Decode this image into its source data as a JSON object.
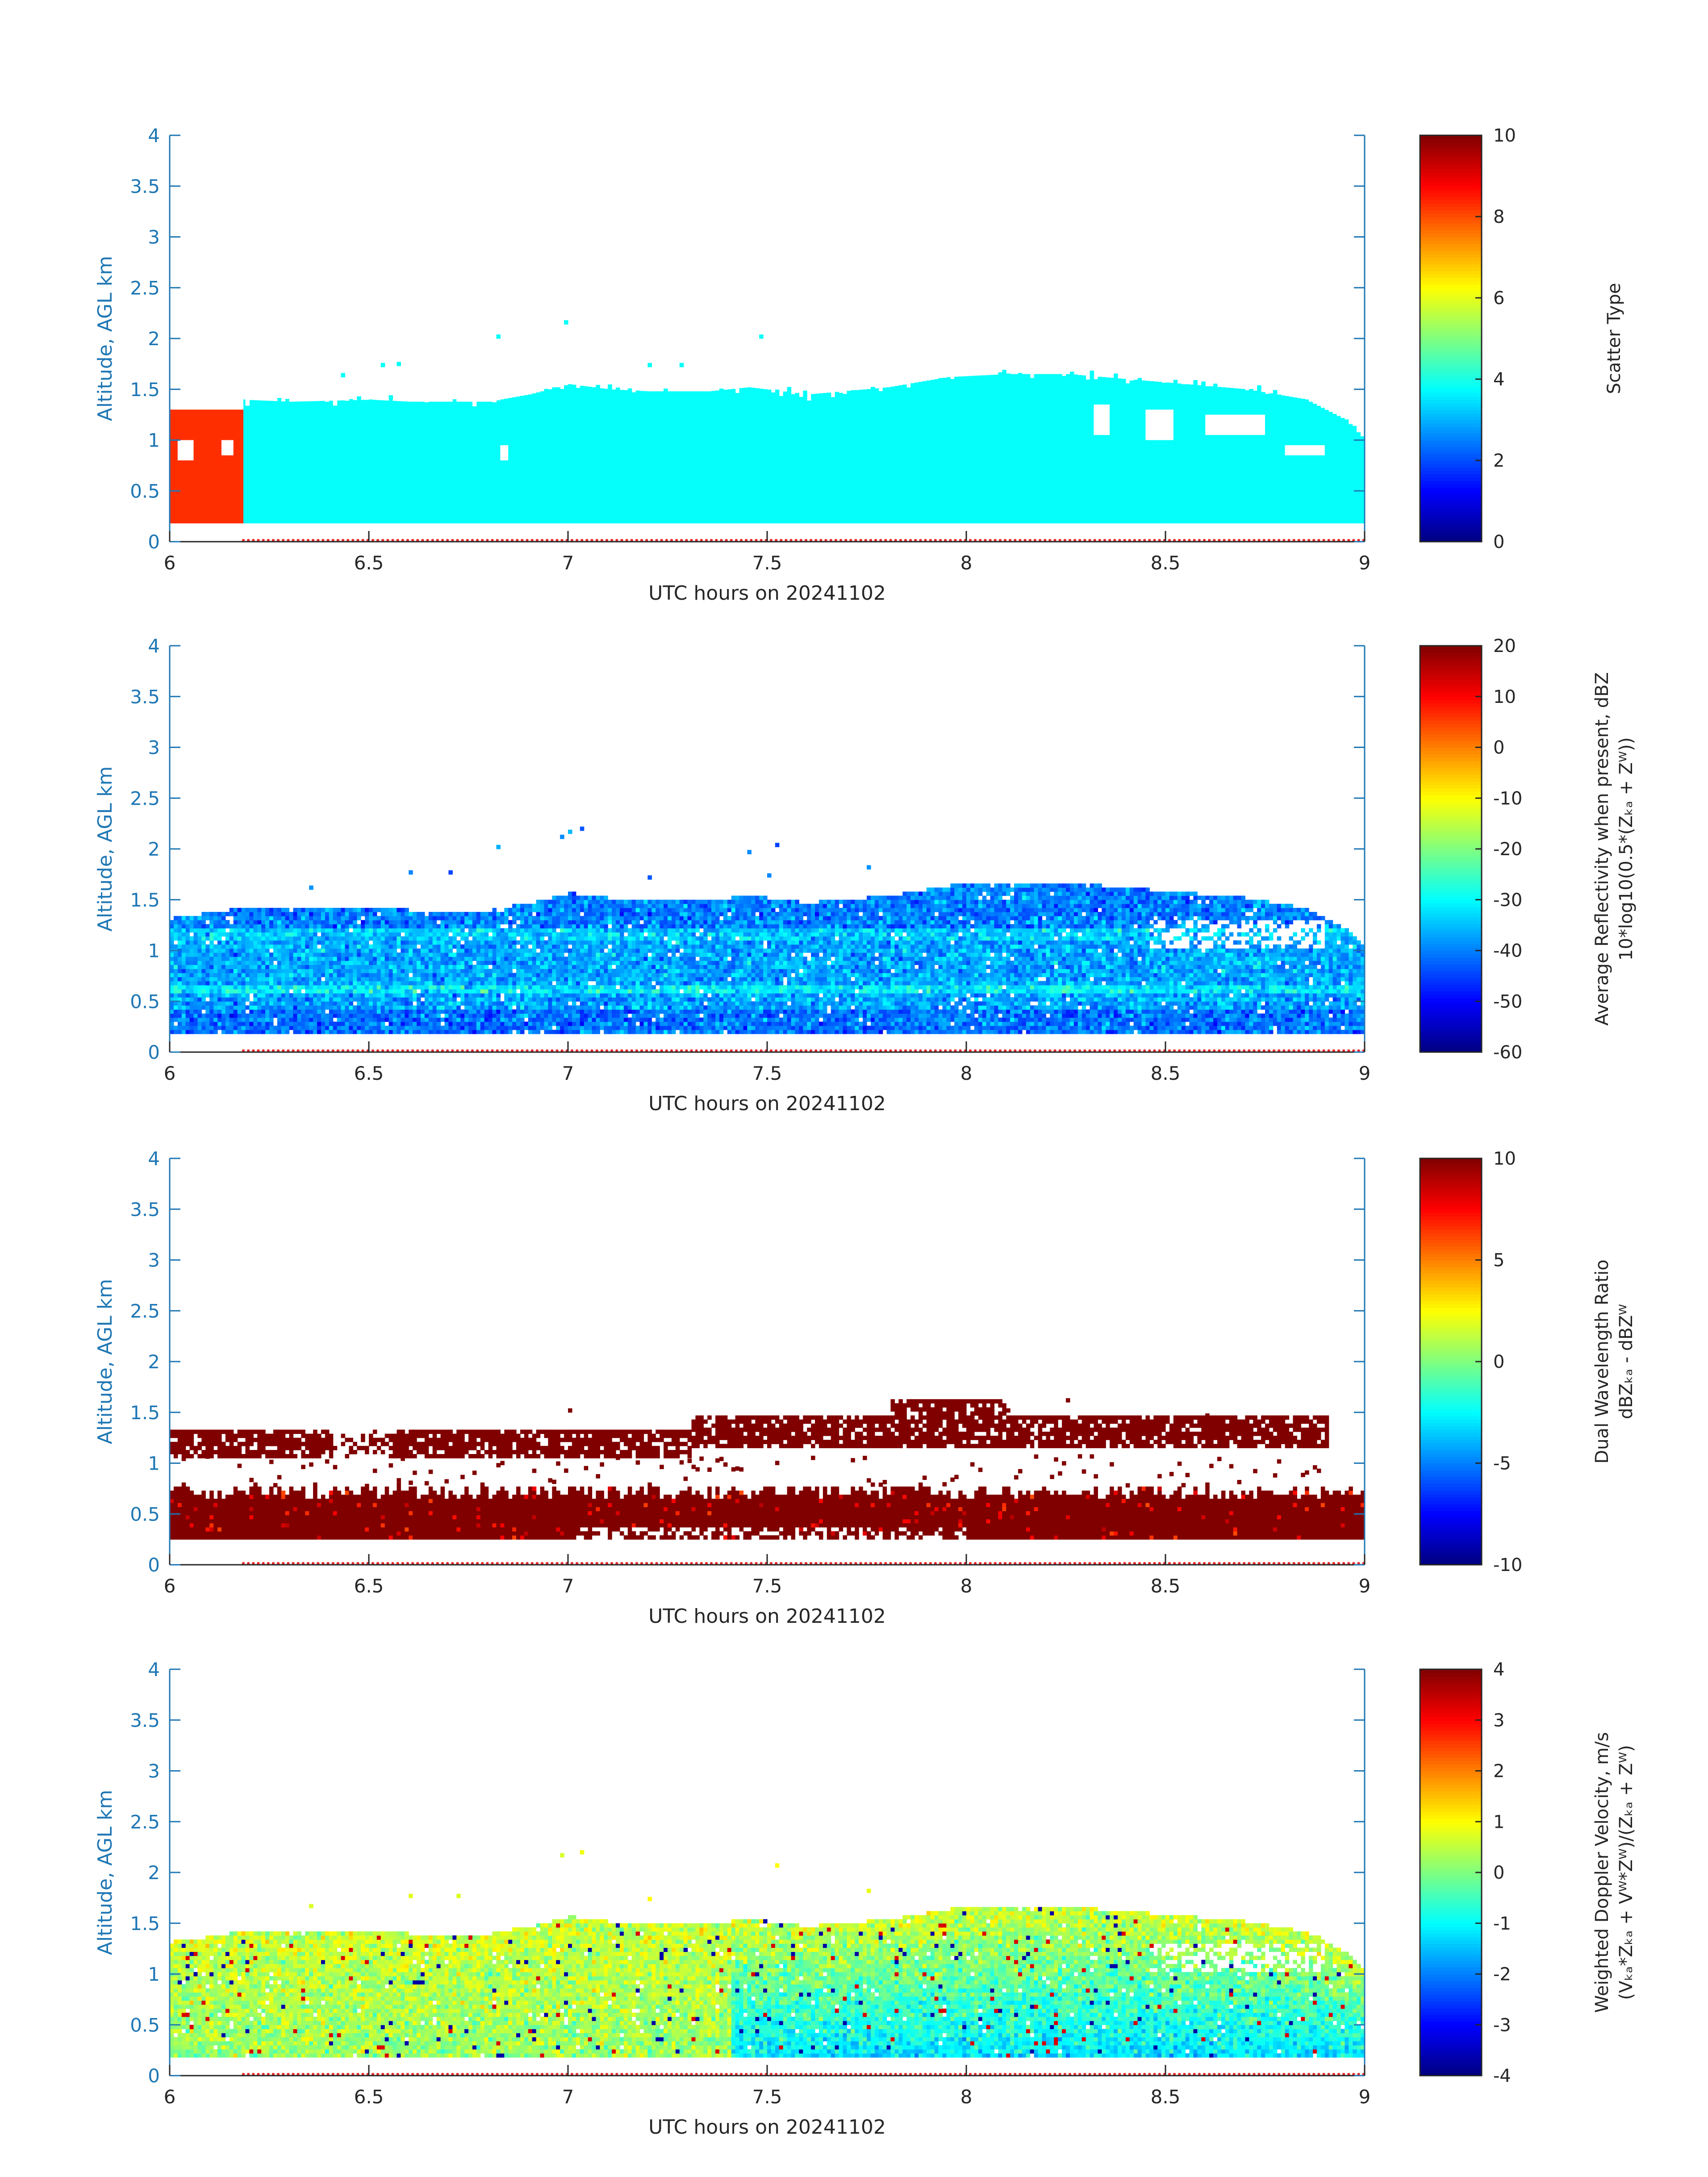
{
  "chart_data": [
    {
      "type": "heatmap",
      "field": "scatter_type",
      "x": {
        "label": "UTC hours on 20241102",
        "range": [
          6,
          9
        ],
        "ticks": [
          "6",
          "6.5",
          "7",
          "7.5",
          "8",
          "8.5",
          "9"
        ],
        "tick_values": [
          6,
          6.5,
          7,
          7.5,
          8,
          8.5,
          9
        ]
      },
      "y": {
        "label": "Altitude, AGL km",
        "range": [
          0,
          4
        ],
        "ticks": [
          "0",
          "0.5",
          "1",
          "1.5",
          "2",
          "2.5",
          "3",
          "3.5",
          "4"
        ],
        "tick_values": [
          0,
          0.5,
          1,
          1.5,
          2,
          2.5,
          3,
          3.5,
          4
        ]
      },
      "colorbar": {
        "label_lines": [
          "Scatter Type"
        ],
        "range": [
          0,
          10
        ],
        "ticks": [
          "0",
          "2",
          "4",
          "6",
          "8",
          "10"
        ],
        "tick_values": [
          0,
          2,
          4,
          6,
          8,
          10
        ],
        "colormap": "jet"
      },
      "base_km": 0.18,
      "top_profile": {
        "x": [
          6.0,
          6.18,
          6.3,
          6.5,
          6.6,
          6.8,
          6.9,
          7.0,
          7.1,
          7.2,
          7.35,
          7.45,
          7.6,
          7.8,
          7.95,
          8.1,
          8.25,
          8.4,
          8.55,
          8.7,
          8.85,
          8.95,
          9.0
        ],
        "y": [
          1.3,
          1.4,
          1.38,
          1.4,
          1.38,
          1.38,
          1.45,
          1.55,
          1.5,
          1.48,
          1.48,
          1.52,
          1.45,
          1.52,
          1.62,
          1.65,
          1.65,
          1.6,
          1.55,
          1.5,
          1.4,
          1.2,
          1.0
        ]
      },
      "regions": [
        {
          "x": [
            6.0,
            6.185
          ],
          "y": [
            0.18,
            1.3
          ],
          "value": 8.3
        },
        {
          "x": [
            6.185,
            9.0
          ],
          "y": [
            0.18,
            1.4
          ],
          "value": 3.8
        }
      ],
      "gaps": [
        [
          6.02,
          6.06,
          0.8,
          1.0
        ],
        [
          6.13,
          6.16,
          0.85,
          1.0
        ],
        [
          6.83,
          6.85,
          0.8,
          0.95
        ],
        [
          8.45,
          8.52,
          1.0,
          1.3
        ],
        [
          8.6,
          8.75,
          1.05,
          1.25
        ],
        [
          8.8,
          8.9,
          0.85,
          0.95
        ],
        [
          8.32,
          8.36,
          1.05,
          1.35
        ]
      ],
      "speckle_above": [
        [
          6.43,
          1.62
        ],
        [
          6.53,
          1.72
        ],
        [
          6.57,
          1.73
        ],
        [
          6.82,
          2.0
        ],
        [
          6.99,
          2.14
        ],
        [
          7.48,
          2.0
        ],
        [
          7.2,
          1.72
        ],
        [
          7.28,
          1.72
        ]
      ]
    },
    {
      "type": "heatmap",
      "field": "average_reflectivity",
      "x": {
        "label": "UTC hours on 20241102",
        "range": [
          6,
          9
        ],
        "ticks": [
          "6",
          "6.5",
          "7",
          "7.5",
          "8",
          "8.5",
          "9"
        ],
        "tick_values": [
          6,
          6.5,
          7,
          7.5,
          8,
          8.5,
          9
        ]
      },
      "y": {
        "label": "Altitude, AGL km",
        "range": [
          0,
          4
        ],
        "ticks": [
          "0",
          "0.5",
          "1",
          "1.5",
          "2",
          "2.5",
          "3",
          "3.5",
          "4"
        ],
        "tick_values": [
          0,
          0.5,
          1,
          1.5,
          2,
          2.5,
          3,
          3.5,
          4
        ]
      },
      "colorbar": {
        "label_lines": [
          "Average Reflectivity when present, dBZ",
          "10*log10(0.5*(Zₖₐ + Zᵂ))"
        ],
        "range": [
          -60,
          20
        ],
        "ticks": [
          "-60",
          "-50",
          "-40",
          "-30",
          "-20",
          "-10",
          "0",
          "10",
          "20"
        ],
        "tick_values": [
          -60,
          -50,
          -40,
          -30,
          -20,
          -10,
          0,
          10,
          20
        ],
        "colormap": "jet"
      },
      "base_km": 0.18,
      "typical_range_dBZ": [
        -50,
        -25
      ],
      "mean_dBZ": -37,
      "speckle_above": [
        [
          6.98,
          2.1
        ],
        [
          7.0,
          2.15
        ],
        [
          7.03,
          2.18
        ],
        [
          7.45,
          1.95
        ],
        [
          7.52,
          2.02
        ],
        [
          6.6,
          1.75
        ],
        [
          6.7,
          1.75
        ],
        [
          6.82,
          2.0
        ],
        [
          7.5,
          1.72
        ],
        [
          7.2,
          1.7
        ],
        [
          7.75,
          1.8
        ],
        [
          6.35,
          1.6
        ]
      ]
    },
    {
      "type": "heatmap",
      "field": "dual_wavelength_ratio",
      "x": {
        "label": "UTC hours on 20241102",
        "range": [
          6,
          9
        ],
        "ticks": [
          "6",
          "6.5",
          "7",
          "7.5",
          "8",
          "8.5",
          "9"
        ],
        "tick_values": [
          6,
          6.5,
          7,
          7.5,
          8,
          8.5,
          9
        ]
      },
      "y": {
        "label": "Altitude, AGL km",
        "range": [
          0,
          4
        ],
        "ticks": [
          "0",
          "0.5",
          "1",
          "1.5",
          "2",
          "2.5",
          "3",
          "3.5",
          "4"
        ],
        "tick_values": [
          0,
          0.5,
          1,
          1.5,
          2,
          2.5,
          3,
          3.5,
          4
        ]
      },
      "colorbar": {
        "label_lines": [
          "Dual Wavelength Ratio",
          "dBZₖₐ - dBZᵂ"
        ],
        "range": [
          -10,
          10
        ],
        "ticks": [
          "-10",
          "-5",
          "0",
          "5",
          "10"
        ],
        "tick_values": [
          -10,
          -5,
          0,
          5,
          10
        ],
        "colormap": "jet"
      },
      "base_km": 0.25,
      "lower_band_km": [
        0.25,
        0.7
      ],
      "upper_band_km": [
        1.05,
        1.3
      ],
      "dominant_value_dB": 10,
      "speckle_above": [
        [
          7.0,
          1.5
        ],
        [
          7.9,
          1.58
        ],
        [
          8.25,
          1.6
        ],
        [
          8.6,
          1.45
        ],
        [
          8.1,
          1.5
        ]
      ]
    },
    {
      "type": "heatmap",
      "field": "weighted_doppler_velocity",
      "x": {
        "label": "UTC hours on 20241102",
        "range": [
          6,
          9
        ],
        "ticks": [
          "6",
          "6.5",
          "7",
          "7.5",
          "8",
          "8.5",
          "9"
        ],
        "tick_values": [
          6,
          6.5,
          7,
          7.5,
          8,
          8.5,
          9
        ]
      },
      "y": {
        "label": "Altitude, AGL km",
        "range": [
          0,
          4
        ],
        "ticks": [
          "0",
          "0.5",
          "1",
          "1.5",
          "2",
          "2.5",
          "3",
          "3.5",
          "4"
        ],
        "tick_values": [
          0,
          0.5,
          1,
          1.5,
          2,
          2.5,
          3,
          3.5,
          4
        ]
      },
      "colorbar": {
        "label_lines": [
          "Weighted Doppler Velocity, m/s",
          "(Vₖₐ*Zₖₐ + Vᵂ*Zᵂ)/(Zₖₐ + Zᵂ)"
        ],
        "range": [
          -4,
          4
        ],
        "ticks": [
          "-4",
          "-3",
          "-2",
          "-1",
          "0",
          "1",
          "2",
          "3",
          "4"
        ],
        "tick_values": [
          -4,
          -3,
          -2,
          -1,
          0,
          1,
          2,
          3,
          4
        ],
        "colormap": "jet"
      },
      "base_km": 0.18,
      "upper_mean_ms": 0.6,
      "lower_mean_ms": -1.2,
      "speckle_above": [
        [
          6.98,
          2.15
        ],
        [
          7.03,
          2.18
        ],
        [
          7.52,
          2.05
        ],
        [
          6.35,
          1.65
        ],
        [
          6.6,
          1.75
        ],
        [
          6.72,
          1.75
        ],
        [
          7.75,
          1.8
        ],
        [
          7.2,
          1.72
        ]
      ]
    }
  ]
}
